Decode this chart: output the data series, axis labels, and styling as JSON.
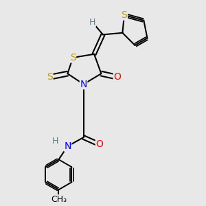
{
  "bg_color": "#e8e8e8",
  "atom_colors": {
    "S": "#b8a000",
    "N": "#0000ff",
    "O": "#ff0000",
    "C": "#000000",
    "H": "#4a8a8a"
  },
  "bond_color": "#000000",
  "figsize": [
    3.0,
    3.0
  ],
  "dpi": 100
}
